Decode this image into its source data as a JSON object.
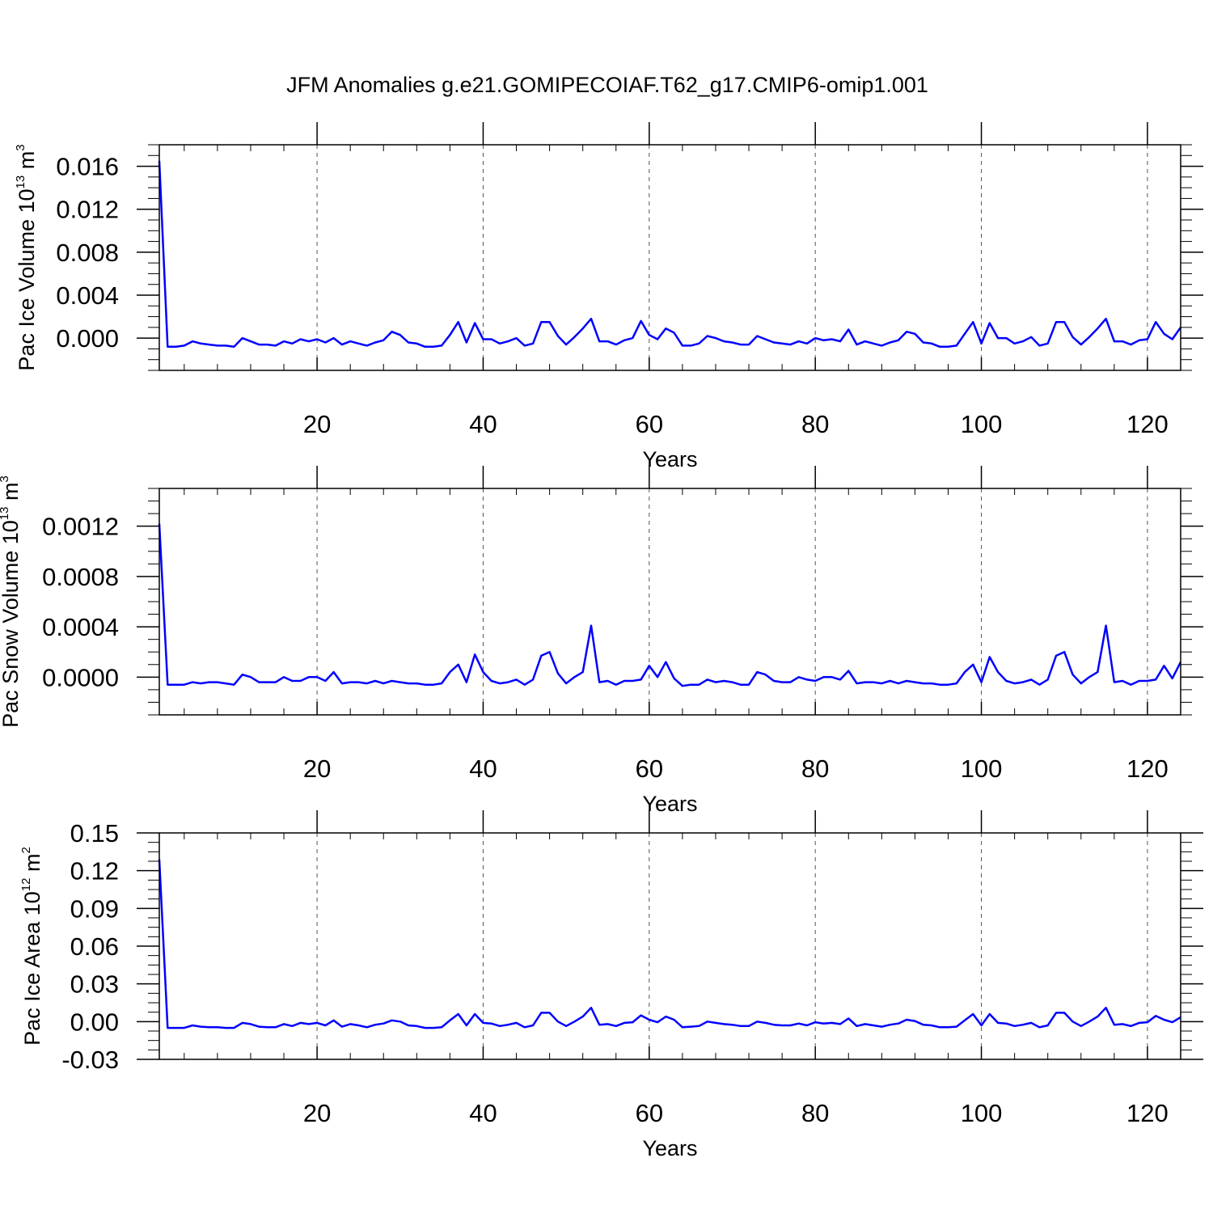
{
  "title": "JFM Anomalies g.e21.GOMIPECOIAF.T62_g17.CMIP6-omip1.001",
  "chart_data": [
    {
      "type": "line",
      "title": "JFM Anomalies g.e21.GOMIPECOIAF.T62_g17.CMIP6-omip1.001",
      "ylabel_main": "Pac Ice Volume 10",
      "ylabel_exp": "13",
      "ylabel_unit": " m",
      "ylabel_unit_exp": "3",
      "xlabel": "Years",
      "xlim": [
        1,
        124
      ],
      "ylim": [
        -0.003,
        0.018
      ],
      "xticks": [
        20,
        40,
        60,
        80,
        100,
        120
      ],
      "xtick_labels": [
        "20",
        "40",
        "60",
        "80",
        "100",
        "120"
      ],
      "yticks": [
        0.0,
        0.004,
        0.008,
        0.012,
        0.016
      ],
      "ytick_labels": [
        "0.000",
        "0.004",
        "0.008",
        "0.012",
        "0.016"
      ],
      "grid": "vertical dashed",
      "color": "#0000ff",
      "x_start": 1,
      "values": [
        0.0165,
        -0.0008,
        -0.0008,
        -0.0007,
        -0.0003,
        -0.0005,
        -0.0006,
        -0.0007,
        -0.0007,
        -0.0008,
        0.0,
        -0.0003,
        -0.0006,
        -0.0006,
        -0.0007,
        -0.0003,
        -0.0005,
        -0.0001,
        -0.0003,
        -0.0001,
        -0.0004,
        0.0,
        -0.0006,
        -0.0003,
        -0.0005,
        -0.0007,
        -0.0004,
        -0.0002,
        0.0006,
        0.0003,
        -0.0004,
        -0.0005,
        -0.0008,
        -0.0008,
        -0.0007,
        0.0003,
        0.0015,
        -0.0004,
        0.0014,
        -0.0001,
        -0.0001,
        -0.0005,
        -0.0003,
        0.0,
        -0.0007,
        -0.0005,
        0.0015,
        0.0015,
        0.0002,
        -0.0006,
        0.0001,
        0.0009,
        0.0018,
        -0.0003,
        -0.0003,
        -0.0006,
        -0.0002,
        0.0,
        0.0016,
        0.0003,
        -0.0001,
        0.0009,
        0.0005,
        -0.0007,
        -0.0007,
        -0.0005,
        0.0002,
        0.0,
        -0.0003,
        -0.0004,
        -0.0006,
        -0.0006,
        0.0002,
        -0.0001,
        -0.0004,
        -0.0005,
        -0.0006,
        -0.0003,
        -0.0005,
        0.0,
        -0.0002,
        -0.0001,
        -0.0003,
        0.0008,
        -0.0006,
        -0.0003,
        -0.0005,
        -0.0007,
        -0.0004,
        -0.0002,
        0.0006,
        0.0004,
        -0.0004,
        -0.0005,
        -0.0008,
        -0.0008,
        -0.0007,
        0.0004,
        0.0015,
        -0.0005,
        0.0014,
        0.0,
        0.0,
        -0.0005,
        -0.0003,
        0.0001,
        -0.0007,
        -0.0005,
        0.0015,
        0.0015,
        0.0001,
        -0.0006,
        0.0001,
        0.0009,
        0.0018,
        -0.0003,
        -0.0003,
        -0.0006,
        -0.0002,
        -0.0001,
        0.0015,
        0.0004,
        -0.0001,
        0.001
      ]
    },
    {
      "type": "line",
      "ylabel_main": "Pac Snow Volume 10",
      "ylabel_exp": "13",
      "ylabel_unit": " m",
      "ylabel_unit_exp": "3",
      "xlabel": "Years",
      "xlim": [
        1,
        124
      ],
      "ylim": [
        -0.0003,
        0.0015
      ],
      "xticks": [
        20,
        40,
        60,
        80,
        100,
        120
      ],
      "xtick_labels": [
        "20",
        "40",
        "60",
        "80",
        "100",
        "120"
      ],
      "yticks": [
        0.0,
        0.0004,
        0.0008,
        0.0012
      ],
      "ytick_labels": [
        "0.0000",
        "0.0004",
        "0.0008",
        "0.0012"
      ],
      "grid": "vertical dashed",
      "color": "#0000ff",
      "x_start": 1,
      "values": [
        0.00122,
        -6e-05,
        -6e-05,
        -6e-05,
        -4e-05,
        -5e-05,
        -4e-05,
        -4e-05,
        -5e-05,
        -6e-05,
        2e-05,
        0.0,
        -4e-05,
        -4e-05,
        -4e-05,
        0.0,
        -3e-05,
        -3e-05,
        0.0,
        0.0,
        -3e-05,
        4e-05,
        -5e-05,
        -4e-05,
        -4e-05,
        -5e-05,
        -3e-05,
        -5e-05,
        -3e-05,
        -4e-05,
        -5e-05,
        -5e-05,
        -6e-05,
        -6e-05,
        -5e-05,
        4e-05,
        0.0001,
        -4e-05,
        0.00018,
        4e-05,
        -3e-05,
        -5e-05,
        -4e-05,
        -2e-05,
        -6e-05,
        -2e-05,
        0.00017,
        0.0002,
        3e-05,
        -5e-05,
        0.0,
        4e-05,
        0.00041,
        -4e-05,
        -3e-05,
        -6e-05,
        -3e-05,
        -3e-05,
        -2e-05,
        9e-05,
        0.0,
        0.00012,
        -1e-05,
        -7e-05,
        -6e-05,
        -6e-05,
        -2e-05,
        -4e-05,
        -3e-05,
        -4e-05,
        -6e-05,
        -6e-05,
        4e-05,
        2e-05,
        -3e-05,
        -4e-05,
        -4e-05,
        0.0,
        -2e-05,
        -3e-05,
        0.0,
        0.0,
        -2e-05,
        5e-05,
        -5e-05,
        -4e-05,
        -4e-05,
        -5e-05,
        -3e-05,
        -5e-05,
        -3e-05,
        -4e-05,
        -5e-05,
        -5e-05,
        -6e-05,
        -6e-05,
        -5e-05,
        4e-05,
        0.0001,
        -4e-05,
        0.00016,
        4e-05,
        -3e-05,
        -5e-05,
        -4e-05,
        -2e-05,
        -6e-05,
        -2e-05,
        0.00017,
        0.0002,
        2e-05,
        -5e-05,
        0.0,
        4e-05,
        0.00041,
        -4e-05,
        -3e-05,
        -6e-05,
        -3e-05,
        -3e-05,
        -2e-05,
        9e-05,
        -1e-05,
        0.00012
      ]
    },
    {
      "type": "line",
      "ylabel_main": "Pac Ice Area 10",
      "ylabel_exp": "12",
      "ylabel_unit": " m",
      "ylabel_unit_exp": "2",
      "xlabel": "Years",
      "xlim": [
        1,
        124
      ],
      "ylim": [
        -0.03,
        0.15
      ],
      "xticks": [
        20,
        40,
        60,
        80,
        100,
        120
      ],
      "xtick_labels": [
        "20",
        "40",
        "60",
        "80",
        "100",
        "120"
      ],
      "yticks": [
        -0.03,
        0.0,
        0.03,
        0.06,
        0.09,
        0.12,
        0.15
      ],
      "ytick_labels": [
        "-0.03",
        "0.00",
        "0.03",
        "0.06",
        "0.09",
        "0.12",
        "0.15"
      ],
      "grid": "vertical dashed",
      "color": "#0000ff",
      "x_start": 1,
      "values": [
        0.129,
        -0.005,
        -0.005,
        -0.005,
        -0.003,
        -0.004,
        -0.0045,
        -0.0045,
        -0.005,
        -0.005,
        -0.001,
        -0.002,
        -0.004,
        -0.0045,
        -0.0045,
        -0.002,
        -0.0035,
        -0.001,
        -0.002,
        -0.001,
        -0.003,
        0.001,
        -0.004,
        -0.002,
        -0.003,
        -0.0045,
        -0.0025,
        -0.0015,
        0.001,
        0.0,
        -0.003,
        -0.0035,
        -0.005,
        -0.005,
        -0.0045,
        0.001,
        0.006,
        -0.003,
        0.006,
        -0.001,
        -0.0015,
        -0.0035,
        -0.0025,
        -0.001,
        -0.0045,
        -0.003,
        0.007,
        0.007,
        0.0,
        -0.0035,
        0.0,
        0.004,
        0.011,
        -0.0025,
        -0.002,
        -0.0035,
        -0.001,
        -0.0005,
        0.005,
        0.0015,
        -0.0005,
        0.004,
        0.0015,
        -0.0045,
        -0.004,
        -0.0035,
        0.0,
        -0.001,
        -0.002,
        -0.0025,
        -0.0035,
        -0.0035,
        0.0,
        -0.001,
        -0.0025,
        -0.003,
        -0.003,
        -0.0015,
        -0.003,
        -0.0005,
        -0.0015,
        -0.001,
        -0.002,
        0.0025,
        -0.0035,
        -0.002,
        -0.003,
        -0.004,
        -0.0025,
        -0.0015,
        0.0015,
        0.0005,
        -0.0025,
        -0.003,
        -0.0045,
        -0.0045,
        -0.004,
        0.001,
        0.006,
        -0.003,
        0.006,
        -0.001,
        -0.0015,
        -0.0035,
        -0.0025,
        -0.001,
        -0.0045,
        -0.003,
        0.007,
        0.007,
        0.0,
        -0.0035,
        0.0,
        0.004,
        0.011,
        -0.0025,
        -0.002,
        -0.0035,
        -0.001,
        -0.0005,
        0.0045,
        0.0015,
        -0.0005,
        0.0035
      ]
    }
  ]
}
